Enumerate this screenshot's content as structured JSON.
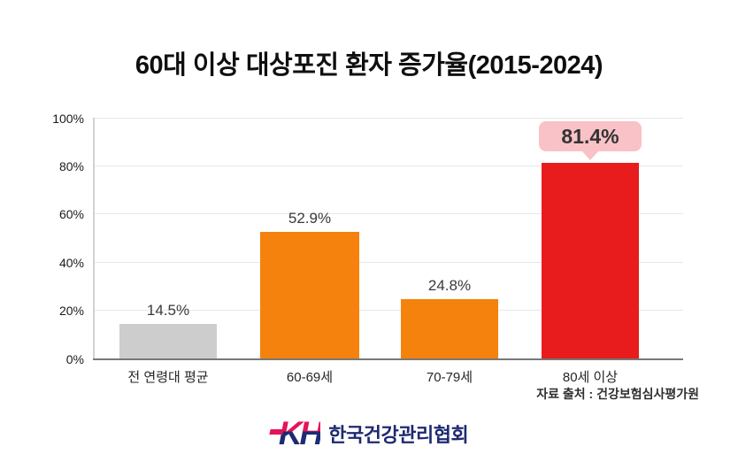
{
  "title": "60대 이상 대상포진 환자 증가율(2015-2024)",
  "chart_data": {
    "type": "bar",
    "title": "60대 이상 대상포진 환자 증가율(2015-2024)",
    "categories": [
      "전 연령대 평균",
      "60-69세",
      "70-79세",
      "80세 이상"
    ],
    "values": [
      14.5,
      52.9,
      24.8,
      81.4
    ],
    "value_labels": [
      "14.5%",
      "52.9%",
      "24.8%",
      "81.4%"
    ],
    "ylabel": "",
    "xlabel": "",
    "ylim": [
      0,
      100
    ],
    "y_ticks": [
      "0%",
      "20%",
      "40%",
      "60%",
      "80%",
      "100%"
    ],
    "grid": true,
    "legend": false,
    "bar_colors": [
      "#cdcdcd",
      "#f5820c",
      "#f5820c",
      "#e81c1c"
    ],
    "highlight_index": 3,
    "highlight_badge": {
      "text": "81.4%",
      "bg": "#f9c2c6",
      "text_color": "#333333"
    }
  },
  "source": "자료 출처 : 건강보험심사평가원",
  "footer_logo": {
    "mark": "KH",
    "name": "한국건강관리협회",
    "crimson": "#e4145a",
    "navy": "#1e2a71"
  }
}
